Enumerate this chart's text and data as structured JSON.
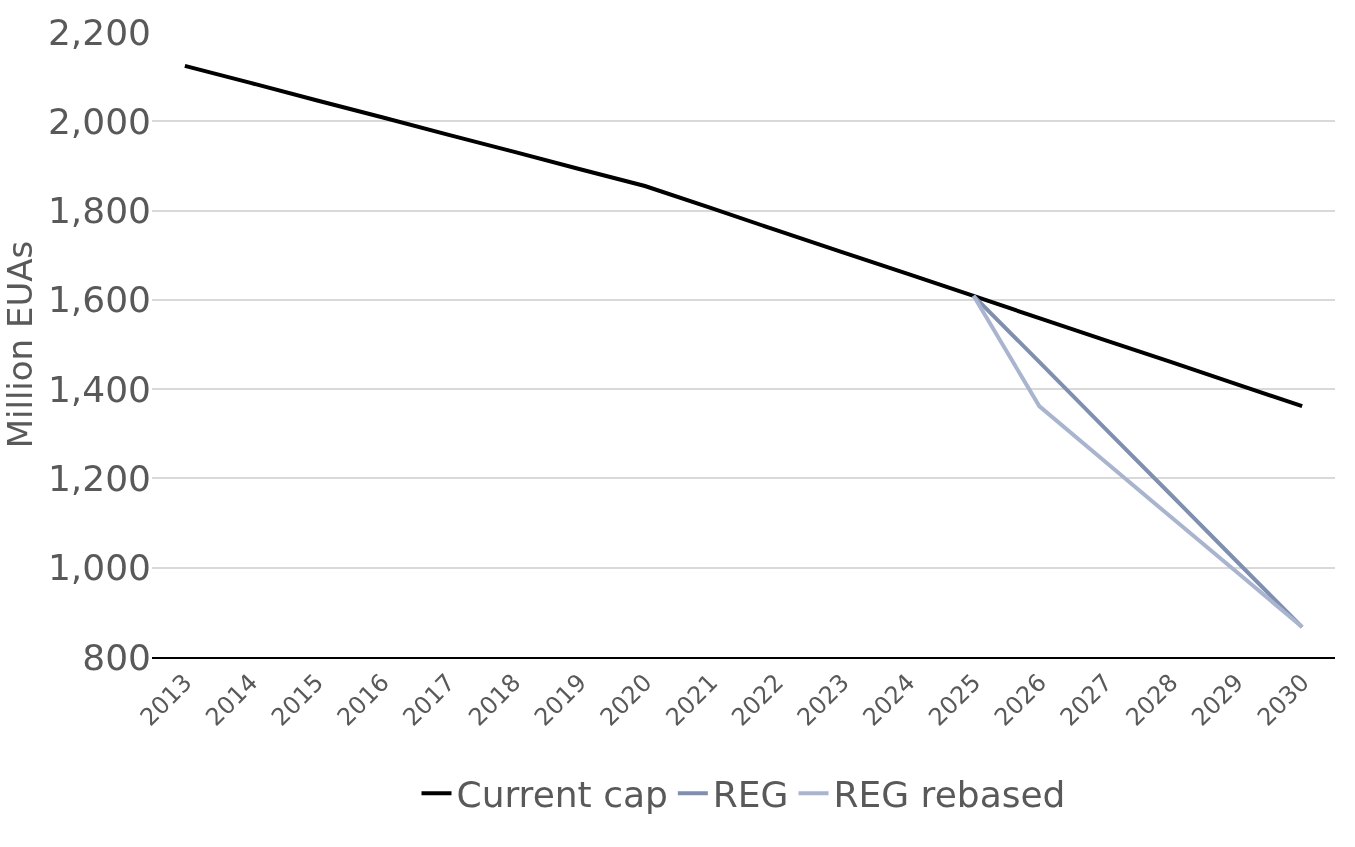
{
  "chart_data": {
    "type": "line",
    "ylabel": "Million EUAs",
    "categories": [
      "2013",
      "2014",
      "2015",
      "2016",
      "2017",
      "2018",
      "2019",
      "2020",
      "2021",
      "2022",
      "2023",
      "2024",
      "2025",
      "2026",
      "2027",
      "2028",
      "2029",
      "2030"
    ],
    "series": [
      {
        "name": "Current cap",
        "color": "#000000",
        "values": [
          2124,
          2086,
          2047,
          2009,
          1970,
          1932,
          1893,
          1855,
          1806,
          1756,
          1707,
          1658,
          1609,
          1559,
          1510,
          1461,
          1411,
          1362
        ]
      },
      {
        "name": "REG",
        "color": "#7f8fb0",
        "values": [
          null,
          null,
          null,
          null,
          null,
          null,
          null,
          null,
          null,
          null,
          null,
          null,
          1609,
          1461,
          1312,
          1164,
          1015,
          867
        ]
      },
      {
        "name": "REG rebased",
        "color": "#a9b4cf",
        "values": [
          null,
          null,
          null,
          null,
          null,
          null,
          null,
          null,
          null,
          null,
          null,
          null,
          1609,
          1362,
          1238,
          1114,
          991,
          867
        ]
      }
    ],
    "ylim": [
      800,
      2200
    ],
    "yticks": [
      {
        "value": 800,
        "label": "800"
      },
      {
        "value": 1000,
        "label": "1,000"
      },
      {
        "value": 1200,
        "label": "1,200"
      },
      {
        "value": 1400,
        "label": "1,400"
      },
      {
        "value": 1600,
        "label": "1,600"
      },
      {
        "value": 1800,
        "label": "1,800"
      },
      {
        "value": 2000,
        "label": "2,000"
      },
      {
        "value": 2200,
        "label": "2,200"
      }
    ],
    "grid": "y",
    "legend": "bottom",
    "marker": "none",
    "line_style": "solid"
  }
}
